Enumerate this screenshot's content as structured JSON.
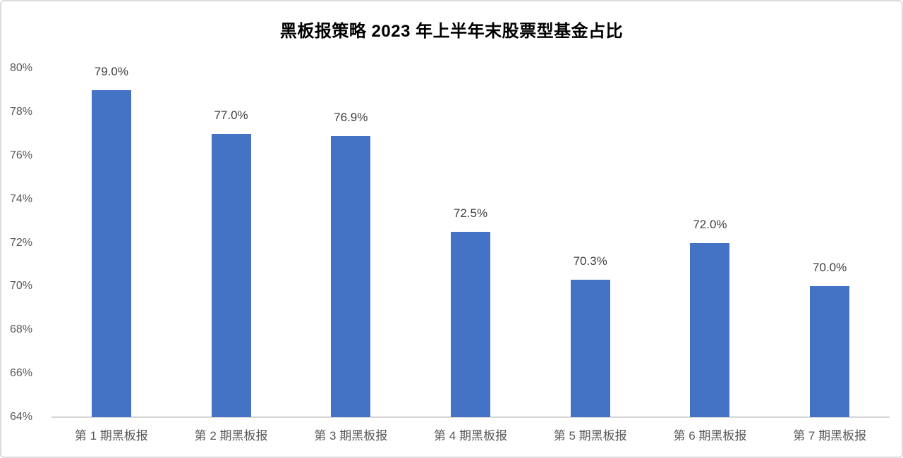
{
  "chart_data": {
    "type": "bar",
    "title": "黑板报策略 2023 年上半年末股票型基金占比",
    "categories": [
      "第 1 期黑板报",
      "第 2 期黑板报",
      "第 3 期黑板报",
      "第 4 期黑板报",
      "第 5 期黑板报",
      "第 6 期黑板报",
      "第 7 期黑板报"
    ],
    "values": [
      79.0,
      77.0,
      76.9,
      72.5,
      70.3,
      72.0,
      70.0
    ],
    "value_labels": [
      "79.0%",
      "77.0%",
      "76.9%",
      "72.5%",
      "70.3%",
      "72.0%",
      "70.0%"
    ],
    "xlabel": "",
    "ylabel": "",
    "ylim": [
      64,
      80
    ],
    "ytick_step": 2,
    "ytick_labels": [
      "64%",
      "66%",
      "68%",
      "70%",
      "72%",
      "74%",
      "76%",
      "78%",
      "80%"
    ],
    "grid": false,
    "legend": false,
    "colors": {
      "bar": "#4472C4",
      "title_text": "#000000",
      "value_label_text": "#404040",
      "axis_label_text": "#595959",
      "baseline": "#d6d6d6",
      "background": "#ffffff",
      "frame_border": "#dcdcdc"
    }
  }
}
